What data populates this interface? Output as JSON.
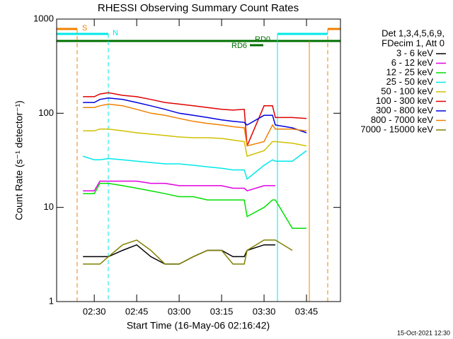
{
  "chart_data": {
    "type": "line",
    "title": "RHESSI Observing Summary Count Rates",
    "xlabel": "Start Time (16-May-06 02:16:42)",
    "ylabel": "Count Rate (s⁻¹ detector⁻¹)",
    "legend_header": [
      "Det 1,3,4,5,6,9,",
      "FDecim 1, Att 0"
    ],
    "annotations": [
      "S",
      "N",
      "RD0",
      "RD6"
    ],
    "footer": "15-Oct-2021 12:30",
    "log_y": true,
    "xlim": [
      136.7,
      237
    ],
    "xticks": [
      {
        "value": 150,
        "label": "02:30"
      },
      {
        "value": 165,
        "label": "02:45"
      },
      {
        "value": 180,
        "label": "03:00"
      },
      {
        "value": 195,
        "label": "03:15"
      },
      {
        "value": 210,
        "label": "03:30"
      },
      {
        "value": 225,
        "label": "03:45"
      }
    ],
    "ylim": [
      1,
      1000
    ],
    "yticks": [
      1,
      10,
      100,
      1000
    ],
    "x": [
      146,
      150,
      152,
      155,
      160,
      165,
      170,
      175,
      180,
      185,
      190,
      195,
      199,
      203,
      204,
      210,
      213,
      214,
      220,
      225
    ],
    "series": [
      {
        "name": "3 - 6 keV",
        "color": "#000000",
        "values": [
          3,
          3,
          3,
          3,
          3.5,
          4,
          3,
          2.5,
          2.5,
          3,
          3.5,
          3.5,
          3,
          3,
          3.5,
          4,
          4,
          4,
          null,
          null
        ]
      },
      {
        "name": "6 - 12 keV",
        "color": "#e000e0",
        "values": [
          15,
          15,
          19,
          19,
          19,
          19,
          18,
          18,
          17,
          17,
          17,
          17,
          16,
          16,
          15,
          17,
          17,
          17,
          null,
          null
        ]
      },
      {
        "name": "12 - 25 keV",
        "color": "#00e000",
        "values": [
          14,
          14,
          18,
          18,
          17,
          16,
          15,
          14,
          13,
          13,
          12,
          12,
          12,
          12,
          8,
          10,
          12,
          12,
          6,
          6
        ]
      },
      {
        "name": "25 - 50 keV",
        "color": "#00e8e8",
        "values": [
          35,
          32,
          32,
          33,
          32,
          31,
          30,
          29,
          29,
          28,
          27,
          26,
          25,
          25,
          20,
          28,
          32,
          31,
          31,
          40
        ]
      },
      {
        "name": "50 - 100 keV",
        "color": "#d0c000",
        "values": [
          65,
          65,
          68,
          68,
          65,
          62,
          60,
          58,
          56,
          55,
          55,
          54,
          52,
          50,
          35,
          40,
          50,
          50,
          48,
          45
        ]
      },
      {
        "name": "100 - 300 keV",
        "color": "#e00000",
        "values": [
          150,
          150,
          160,
          165,
          155,
          150,
          140,
          130,
          125,
          120,
          115,
          110,
          108,
          110,
          45,
          120,
          120,
          90,
          90,
          88
        ]
      },
      {
        "name": "300 - 800 keV",
        "color": "#0000e0",
        "values": [
          130,
          130,
          140,
          145,
          140,
          130,
          120,
          110,
          100,
          95,
          90,
          85,
          82,
          80,
          75,
          95,
          95,
          75,
          70,
          62
        ]
      },
      {
        "name": "800 - 7000 keV",
        "color": "#f08000",
        "values": [
          115,
          115,
          120,
          125,
          120,
          110,
          100,
          95,
          88,
          82,
          78,
          75,
          72,
          70,
          45,
          50,
          75,
          68,
          68,
          65
        ]
      },
      {
        "name": "7000 - 15000 keV",
        "color": "#808000",
        "values": [
          2.5,
          2.5,
          2.5,
          3,
          4,
          4.5,
          3.5,
          2.5,
          2.5,
          3,
          3.5,
          3.5,
          2.5,
          2.5,
          3.5,
          4.5,
          4.5,
          4.5,
          3.5,
          null
        ]
      }
    ]
  }
}
